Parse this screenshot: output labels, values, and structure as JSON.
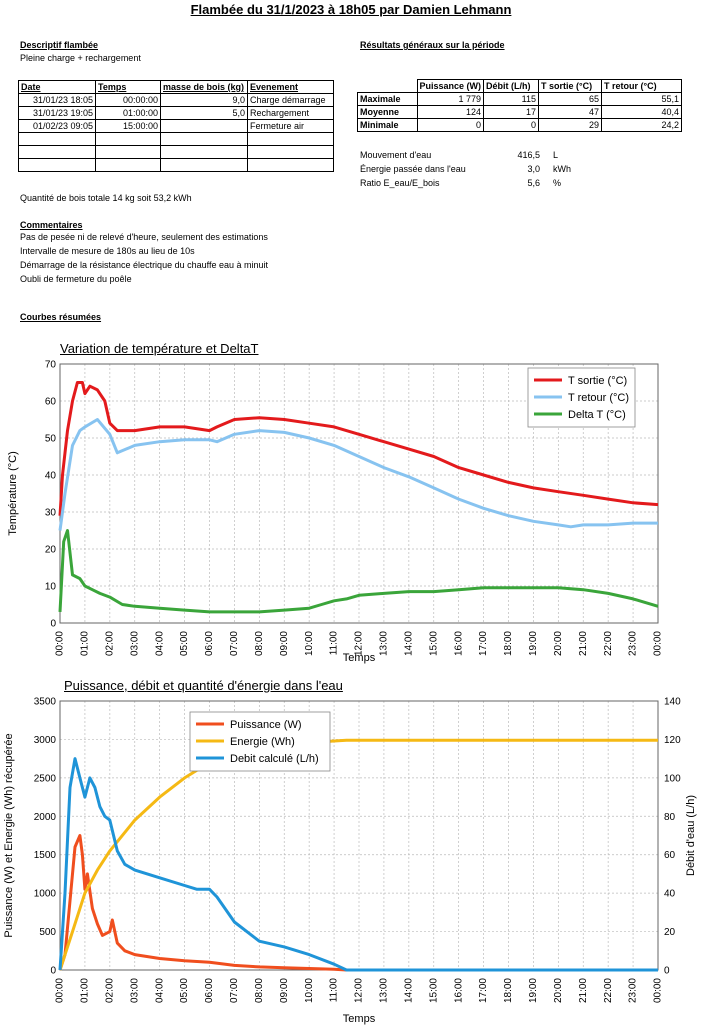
{
  "title": "Flambée du 31/1/2023 à 18h05 par Damien Lehmann",
  "descriptif": {
    "heading": "Descriptif flambée",
    "text": "Pleine charge + rechargement"
  },
  "events": {
    "headers": [
      "Date",
      "Temps",
      "masse de bois (kg)",
      "Evenement"
    ],
    "rows": [
      [
        "31/01/23 18:05",
        "00:00:00",
        "9,0",
        "Charge démarrage"
      ],
      [
        "31/01/23 19:05",
        "01:00:00",
        "5,0",
        "Rechargement"
      ],
      [
        "01/02/23 09:05",
        "15:00:00",
        "",
        "Fermeture air"
      ],
      [
        "",
        "",
        "",
        ""
      ],
      [
        "",
        "",
        "",
        ""
      ],
      [
        "",
        "",
        "",
        ""
      ]
    ]
  },
  "quantite": "Quantité de bois totale 14 kg soit 53,2 kWh",
  "resultats": {
    "heading": "Résultats généraux sur la période",
    "headers": [
      "",
      "Puissance (W)",
      "Débit (L/h)",
      "T sortie (°C)",
      "T retour (°C)"
    ],
    "rows": [
      [
        "Maximale",
        "1 779",
        "115",
        "65",
        "55,1"
      ],
      [
        "Moyenne",
        "124",
        "17",
        "47",
        "40,4"
      ],
      [
        "Minimale",
        "0",
        "0",
        "29",
        "24,2"
      ]
    ]
  },
  "stats": [
    {
      "label": "Mouvement d'eau",
      "value": "416,5",
      "unit": "L"
    },
    {
      "label": "Énergie passée dans l'eau",
      "value": "3,0",
      "unit": "kWh"
    },
    {
      "label": "Ratio E_eau/E_bois",
      "value": "5,6",
      "unit": "%"
    }
  ],
  "commentaires": {
    "heading": "Commentaires",
    "lines": [
      "Pas de pesée ni de relevé d'heure, seulement des estimations",
      "Intervalle de  mesure de 180s au lieu de 10s",
      "Démarrage de la résistance électrique du chauffe eau à minuit",
      "Oubli de fermeture du poêle"
    ]
  },
  "courbes_heading": "Courbes résumées",
  "chart_data": [
    {
      "type": "line",
      "title": "Variation de température et DeltaT",
      "xlabel": "Temps",
      "ylabel": "Température (°C)",
      "ylim": [
        0,
        70
      ],
      "xlim": [
        0,
        24
      ],
      "grid": true,
      "legend": "top-right",
      "x_ticks": [
        "00:00",
        "01:00",
        "02:00",
        "03:00",
        "04:00",
        "05:00",
        "06:00",
        "07:00",
        "08:00",
        "09:00",
        "10:00",
        "11:00",
        "12:00",
        "13:00",
        "14:00",
        "15:00",
        "16:00",
        "17:00",
        "18:00",
        "19:00",
        "20:00",
        "21:00",
        "22:00",
        "23:00",
        "00:00"
      ],
      "y_ticks": [
        "0",
        "10",
        "20",
        "30",
        "40",
        "50",
        "60",
        "70"
      ],
      "series": [
        {
          "name": "T sortie (°C)",
          "color": "#e31a1c",
          "x": [
            0,
            0.1,
            0.3,
            0.5,
            0.7,
            0.9,
            1.0,
            1.2,
            1.5,
            1.8,
            2.0,
            2.3,
            3,
            4,
            5,
            6,
            6.3,
            7,
            8,
            9,
            10,
            11,
            12,
            13,
            14,
            15,
            16,
            17,
            18,
            19,
            20,
            21,
            22,
            23,
            24
          ],
          "y": [
            29,
            40,
            52,
            60,
            65,
            65,
            62,
            64,
            63,
            60,
            54,
            52,
            52,
            53,
            53,
            52,
            53,
            55,
            55.5,
            55,
            54,
            53,
            51,
            49,
            47,
            45,
            42,
            40,
            38,
            36.5,
            35.5,
            34.5,
            33.5,
            32.5,
            32
          ]
        },
        {
          "name": "T retour (°C)",
          "color": "#87c3f0",
          "x": [
            0,
            0.2,
            0.5,
            0.8,
            1.0,
            1.5,
            2.0,
            2.3,
            3,
            4,
            5,
            6,
            6.3,
            7,
            8,
            9,
            10,
            11,
            12,
            13,
            14,
            15,
            16,
            17,
            18,
            19,
            20,
            20.5,
            21,
            22,
            23,
            24
          ],
          "y": [
            25,
            35,
            48,
            52,
            53,
            55,
            51,
            46,
            48,
            49,
            49.5,
            49.5,
            49,
            51,
            52,
            51.5,
            50,
            48,
            45,
            42,
            39.5,
            36.5,
            33.5,
            31,
            29,
            27.5,
            26.5,
            26,
            26.5,
            26.5,
            27,
            27
          ]
        },
        {
          "name": "Delta T (°C)",
          "color": "#3aa53a",
          "x": [
            0,
            0.15,
            0.3,
            0.5,
            0.8,
            1.0,
            1.3,
            1.6,
            2.0,
            2.5,
            3,
            4,
            5,
            6,
            7,
            8,
            9,
            10,
            10.5,
            11,
            11.5,
            12,
            13,
            14,
            15,
            16,
            17,
            18,
            19,
            20,
            21,
            22,
            23,
            24
          ],
          "y": [
            3,
            22,
            25,
            13,
            12,
            10,
            9,
            8,
            7,
            5,
            4.5,
            4,
            3.5,
            3,
            3,
            3,
            3.5,
            4,
            5,
            6,
            6.5,
            7.5,
            8,
            8.5,
            8.5,
            9,
            9.5,
            9.5,
            9.5,
            9.5,
            9,
            8,
            6.5,
            4.5
          ]
        }
      ]
    },
    {
      "type": "line",
      "title": "Puissance, débit et quantité d'énergie dans l'eau",
      "xlabel": "Temps",
      "ylabel": "Puissance (W) et Energie (Wh) récupérée",
      "y2label": "Débit d'eau (L/h)",
      "ylim": [
        0,
        3500
      ],
      "y2lim": [
        0,
        140
      ],
      "xlim": [
        0,
        24
      ],
      "grid": true,
      "legend": "top-center",
      "x_ticks": [
        "00:00",
        "01:00",
        "02:00",
        "03:00",
        "04:00",
        "05:00",
        "06:00",
        "07:00",
        "08:00",
        "09:00",
        "10:00",
        "11:00",
        "12:00",
        "13:00",
        "14:00",
        "15:00",
        "16:00",
        "17:00",
        "18:00",
        "19:00",
        "20:00",
        "21:00",
        "22:00",
        "23:00",
        "00:00"
      ],
      "y_ticks": [
        "0",
        "500",
        "1000",
        "1500",
        "2000",
        "2500",
        "3000",
        "3500"
      ],
      "y2_ticks": [
        "0",
        "20",
        "40",
        "60",
        "80",
        "100",
        "120",
        "140"
      ],
      "series": [
        {
          "name": "Puissance (W)",
          "color": "#f04e1e",
          "axis": "left",
          "x": [
            0,
            0.2,
            0.4,
            0.6,
            0.8,
            0.9,
            1.0,
            1.1,
            1.3,
            1.5,
            1.7,
            2.0,
            2.1,
            2.3,
            2.6,
            3,
            4,
            5,
            6,
            7,
            8,
            9,
            10,
            11,
            11.5,
            12,
            24
          ],
          "y": [
            0,
            200,
            900,
            1600,
            1750,
            1500,
            1050,
            1250,
            800,
            600,
            450,
            500,
            650,
            350,
            250,
            200,
            150,
            120,
            100,
            60,
            40,
            30,
            20,
            10,
            0,
            0,
            0
          ]
        },
        {
          "name": "Energie (Wh)",
          "color": "#f5b914",
          "axis": "left",
          "x": [
            0,
            0.5,
            1.0,
            1.5,
            2.0,
            3,
            4,
            5,
            6,
            7,
            8,
            9,
            10,
            11,
            11.5,
            12,
            24
          ],
          "y": [
            0,
            500,
            1000,
            1300,
            1550,
            1950,
            2250,
            2500,
            2700,
            2800,
            2880,
            2930,
            2960,
            2980,
            2990,
            2990,
            2990
          ]
        },
        {
          "name": "Debit calculé (L/h)",
          "color": "#1f94d8",
          "axis": "right",
          "x": [
            0,
            0.2,
            0.4,
            0.6,
            0.8,
            1.0,
            1.2,
            1.4,
            1.6,
            1.8,
            2.0,
            2.3,
            2.6,
            3,
            4,
            5,
            5.5,
            6,
            6.3,
            7,
            8,
            9,
            10,
            11,
            11.5,
            12,
            24
          ],
          "y": [
            0,
            40,
            95,
            110,
            100,
            90,
            100,
            95,
            85,
            80,
            78,
            62,
            55,
            52,
            48,
            44,
            42,
            42,
            38,
            25,
            15,
            12,
            8,
            3,
            0,
            0,
            0
          ]
        }
      ]
    }
  ]
}
